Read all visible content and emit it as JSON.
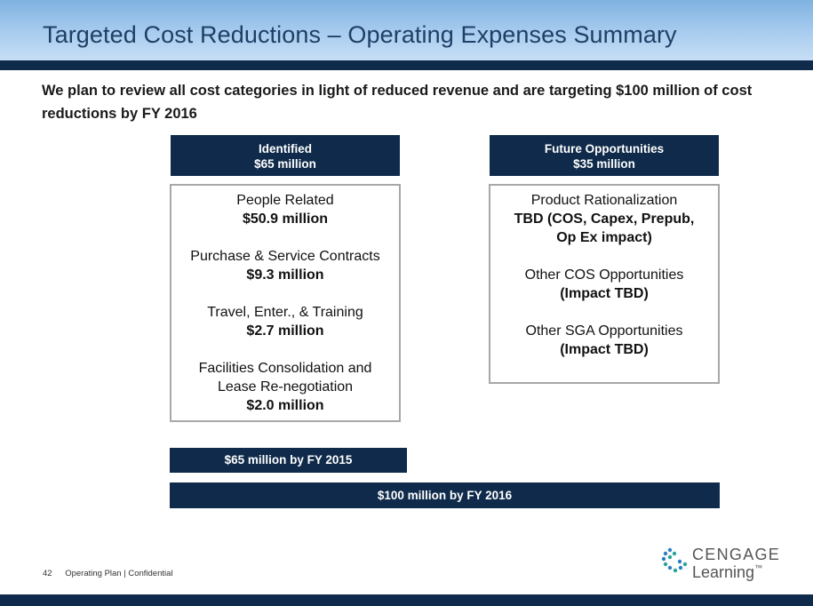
{
  "title": "Targeted Cost Reductions – Operating Expenses Summary",
  "intro": "We plan to review all cost categories in light of reduced revenue and are targeting $100 million of cost reductions by FY 2016",
  "identified": {
    "heading": "Identified",
    "amount": "$65 million",
    "items": [
      {
        "label": "People Related",
        "value": "$50.9 million"
      },
      {
        "label": "Purchase & Service Contracts",
        "value": "$9.3 million"
      },
      {
        "label": "Travel, Enter., & Training",
        "value": "$2.7 million"
      },
      {
        "label_line1": "Facilities Consolidation and",
        "label_line2": "Lease Re-negotiation",
        "value": "$2.0 million"
      }
    ]
  },
  "future": {
    "heading": "Future Opportunities",
    "amount": "$35 million",
    "items": [
      {
        "label": "Product Rationalization",
        "value_line1": "TBD (COS, Capex, Prepub,",
        "value_line2": "Op Ex impact)"
      },
      {
        "label": "Other COS Opportunities",
        "value": "(Impact TBD)"
      },
      {
        "label": "Other SGA Opportunities",
        "value": "(Impact TBD)"
      }
    ]
  },
  "bars": {
    "fy2015": "$65 million by FY 2015",
    "fy2016": "$100 million by FY 2016"
  },
  "footer": {
    "page_number": "42",
    "text": "Operating Plan | Confidential"
  },
  "logo": {
    "word1": "CENGAGE",
    "word2": "Learning",
    "trademark": "™"
  },
  "colors": {
    "navy": "#0f2a4a",
    "title_text": "#1f3f66",
    "title_band": "#a9cdef",
    "logo_blue": "#2a7fc4",
    "logo_teal": "#2aa39a"
  }
}
